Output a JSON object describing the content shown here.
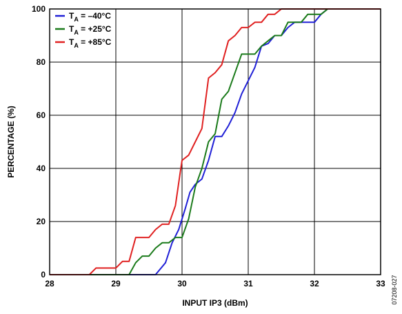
{
  "chart_data": {
    "type": "line",
    "title": "",
    "xlabel": "INPUT IP3 (dBm)",
    "ylabel": "PERCENTAGE (%)",
    "xlim": [
      28,
      33
    ],
    "ylim": [
      0,
      100
    ],
    "xticks": [
      "28",
      "29",
      "30",
      "31",
      "32",
      "33"
    ],
    "yticks": [
      "0",
      "20",
      "40",
      "60",
      "80",
      "100"
    ],
    "grid": true,
    "legend_position": "top-left",
    "figure_id": "07208-027",
    "series": [
      {
        "legend_main": "T",
        "legend_sub": "A",
        "legend_rest": " = –40°C",
        "color": "#1f1fd6",
        "x": [
          28.0,
          29.6,
          29.75,
          29.85,
          29.95,
          30.05,
          30.12,
          30.2,
          30.3,
          30.4,
          30.5,
          30.6,
          30.7,
          30.8,
          30.9,
          31.0,
          31.1,
          31.2,
          31.3,
          31.4,
          31.5,
          31.6,
          31.7,
          31.8,
          31.9,
          32.0,
          32.1,
          32.2,
          33.0
        ],
        "y": [
          0,
          0,
          4.5,
          12,
          17,
          25,
          31,
          34,
          36,
          43,
          52,
          52,
          56,
          61,
          68,
          73,
          78,
          86,
          87,
          90,
          90,
          93,
          95,
          95,
          95,
          95,
          98,
          100,
          100
        ]
      },
      {
        "legend_main": "T",
        "legend_sub": "A",
        "legend_rest": " = +25°C",
        "color": "#1a7a1a",
        "x": [
          28.0,
          29.2,
          29.3,
          29.4,
          29.5,
          29.6,
          29.7,
          29.8,
          29.9,
          30.0,
          30.1,
          30.2,
          30.3,
          30.4,
          30.5,
          30.6,
          30.7,
          30.8,
          30.9,
          31.0,
          31.1,
          31.2,
          31.3,
          31.4,
          31.5,
          31.6,
          31.7,
          31.8,
          31.9,
          32.0,
          32.1,
          32.2,
          33.0
        ],
        "y": [
          0,
          0,
          4.5,
          7,
          7,
          10,
          12,
          12,
          14,
          14,
          21,
          33,
          40,
          50,
          53,
          66,
          69,
          76,
          83,
          83,
          83,
          86,
          88,
          90,
          90,
          95,
          95,
          95,
          98,
          98,
          98,
          100,
          100
        ]
      },
      {
        "legend_main": "T",
        "legend_sub": "A",
        "legend_rest": " = +85°C",
        "color": "#e02020",
        "x": [
          28.0,
          28.6,
          28.7,
          28.8,
          28.9,
          29.0,
          29.1,
          29.2,
          29.3,
          29.4,
          29.5,
          29.6,
          29.7,
          29.8,
          29.9,
          29.97,
          30.0,
          30.1,
          30.2,
          30.3,
          30.4,
          30.5,
          30.6,
          30.7,
          30.8,
          30.9,
          31.0,
          31.1,
          31.2,
          31.3,
          31.4,
          31.5,
          32.0,
          33.0
        ],
        "y": [
          0,
          0,
          2.5,
          2.5,
          2.5,
          2.5,
          5,
          5,
          14,
          14,
          14,
          17,
          19,
          19,
          26,
          38,
          43,
          45,
          50,
          55,
          74,
          76,
          79,
          88,
          90,
          93,
          93,
          95,
          95,
          98,
          98,
          100,
          100,
          100
        ]
      }
    ]
  }
}
